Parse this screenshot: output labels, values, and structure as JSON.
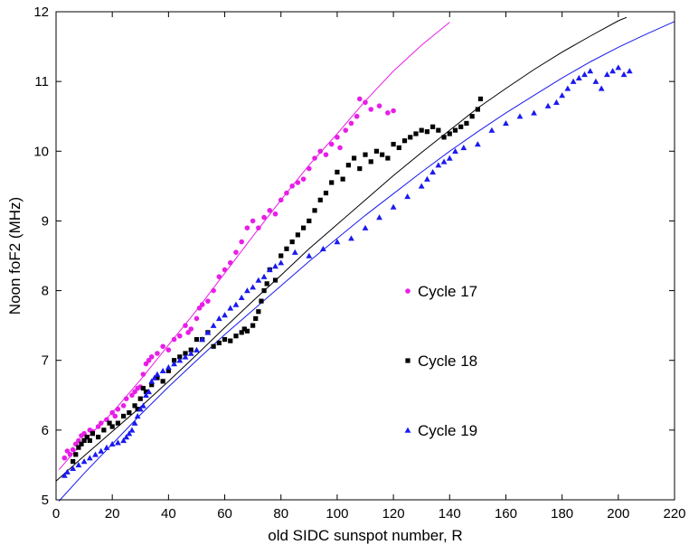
{
  "chart_data": {
    "type": "scatter",
    "xlabel": "old SIDC sunspot number, R",
    "ylabel": "Noon foF2 (MHz)",
    "xlim": [
      0,
      220
    ],
    "ylim": [
      5,
      12
    ],
    "xticks": [
      0,
      20,
      40,
      60,
      80,
      100,
      120,
      140,
      160,
      180,
      200,
      220
    ],
    "yticks": [
      5,
      6,
      7,
      8,
      9,
      10,
      11,
      12
    ],
    "grid": false,
    "legend_position": "inside-right",
    "series": [
      {
        "name": "Cycle 17",
        "marker": "circle",
        "color": "#e81ee6",
        "fit": [
          [
            1,
            5.43
          ],
          [
            10,
            5.85
          ],
          [
            20,
            6.25
          ],
          [
            30,
            6.72
          ],
          [
            40,
            7.22
          ],
          [
            50,
            7.72
          ],
          [
            60,
            8.25
          ],
          [
            70,
            8.78
          ],
          [
            80,
            9.3
          ],
          [
            90,
            9.8
          ],
          [
            100,
            10.25
          ],
          [
            110,
            10.72
          ],
          [
            120,
            11.15
          ],
          [
            130,
            11.52
          ],
          [
            140,
            11.85
          ]
        ],
        "points": [
          [
            3,
            5.6
          ],
          [
            4,
            5.7
          ],
          [
            5,
            5.65
          ],
          [
            6,
            5.72
          ],
          [
            7,
            5.8
          ],
          [
            8,
            5.85
          ],
          [
            9,
            5.92
          ],
          [
            10,
            5.95
          ],
          [
            11,
            5.9
          ],
          [
            12,
            6.0
          ],
          [
            13,
            5.98
          ],
          [
            15,
            6.05
          ],
          [
            16,
            6.1
          ],
          [
            18,
            6.15
          ],
          [
            20,
            6.25
          ],
          [
            21,
            6.2
          ],
          [
            22,
            6.3
          ],
          [
            24,
            6.35
          ],
          [
            25,
            6.45
          ],
          [
            27,
            6.5
          ],
          [
            28,
            6.55
          ],
          [
            29,
            6.6
          ],
          [
            30,
            6.62
          ],
          [
            31,
            6.8
          ],
          [
            32,
            6.95
          ],
          [
            33,
            7.0
          ],
          [
            34,
            7.05
          ],
          [
            36,
            7.1
          ],
          [
            38,
            7.2
          ],
          [
            40,
            7.15
          ],
          [
            42,
            7.3
          ],
          [
            44,
            7.35
          ],
          [
            46,
            7.5
          ],
          [
            47,
            7.4
          ],
          [
            48,
            7.45
          ],
          [
            50,
            7.6
          ],
          [
            51,
            7.75
          ],
          [
            52,
            7.8
          ],
          [
            54,
            7.85
          ],
          [
            56,
            8.0
          ],
          [
            58,
            8.2
          ],
          [
            60,
            8.3
          ],
          [
            62,
            8.4
          ],
          [
            64,
            8.55
          ],
          [
            66,
            8.7
          ],
          [
            68,
            8.9
          ],
          [
            70,
            9.0
          ],
          [
            72,
            8.9
          ],
          [
            74,
            9.05
          ],
          [
            76,
            9.15
          ],
          [
            78,
            9.1
          ],
          [
            80,
            9.3
          ],
          [
            82,
            9.4
          ],
          [
            84,
            9.5
          ],
          [
            86,
            9.55
          ],
          [
            88,
            9.6
          ],
          [
            90,
            9.75
          ],
          [
            92,
            9.9
          ],
          [
            94,
            10.0
          ],
          [
            96,
            9.95
          ],
          [
            98,
            10.1
          ],
          [
            100,
            10.2
          ],
          [
            101,
            10.05
          ],
          [
            103,
            10.3
          ],
          [
            105,
            10.4
          ],
          [
            107,
            10.5
          ],
          [
            108,
            10.75
          ],
          [
            110,
            10.7
          ],
          [
            112,
            10.6
          ],
          [
            115,
            10.65
          ],
          [
            118,
            10.55
          ],
          [
            120,
            10.58
          ]
        ]
      },
      {
        "name": "Cycle 18",
        "marker": "square",
        "color": "#000000",
        "fit": [
          [
            0,
            5.27
          ],
          [
            10,
            5.63
          ],
          [
            20,
            5.98
          ],
          [
            30,
            6.33
          ],
          [
            40,
            6.7
          ],
          [
            50,
            7.08
          ],
          [
            60,
            7.47
          ],
          [
            70,
            7.85
          ],
          [
            80,
            8.22
          ],
          [
            90,
            8.6
          ],
          [
            100,
            8.95
          ],
          [
            110,
            9.3
          ],
          [
            120,
            9.65
          ],
          [
            130,
            9.98
          ],
          [
            140,
            10.3
          ],
          [
            150,
            10.62
          ],
          [
            160,
            10.9
          ],
          [
            170,
            11.17
          ],
          [
            180,
            11.42
          ],
          [
            190,
            11.65
          ],
          [
            200,
            11.87
          ],
          [
            203,
            11.92
          ]
        ],
        "points": [
          [
            6,
            5.55
          ],
          [
            7,
            5.65
          ],
          [
            8,
            5.75
          ],
          [
            9,
            5.8
          ],
          [
            10,
            5.85
          ],
          [
            11,
            5.9
          ],
          [
            12,
            5.85
          ],
          [
            13,
            5.95
          ],
          [
            15,
            5.9
          ],
          [
            17,
            6.0
          ],
          [
            19,
            6.1
          ],
          [
            20,
            6.05
          ],
          [
            22,
            6.1
          ],
          [
            24,
            6.2
          ],
          [
            26,
            6.25
          ],
          [
            28,
            6.35
          ],
          [
            29,
            6.3
          ],
          [
            30,
            6.45
          ],
          [
            31,
            6.6
          ],
          [
            32,
            6.55
          ],
          [
            34,
            6.65
          ],
          [
            36,
            6.75
          ],
          [
            38,
            6.7
          ],
          [
            40,
            6.85
          ],
          [
            42,
            7.0
          ],
          [
            44,
            7.05
          ],
          [
            46,
            7.1
          ],
          [
            48,
            7.15
          ],
          [
            50,
            7.3
          ],
          [
            52,
            7.3
          ],
          [
            54,
            7.4
          ],
          [
            56,
            7.2
          ],
          [
            58,
            7.25
          ],
          [
            60,
            7.3
          ],
          [
            62,
            7.28
          ],
          [
            64,
            7.35
          ],
          [
            66,
            7.4
          ],
          [
            67,
            7.45
          ],
          [
            68,
            7.42
          ],
          [
            70,
            7.5
          ],
          [
            71,
            7.6
          ],
          [
            72,
            7.7
          ],
          [
            73,
            7.85
          ],
          [
            74,
            8.0
          ],
          [
            75,
            8.1
          ],
          [
            76,
            8.3
          ],
          [
            78,
            8.15
          ],
          [
            80,
            8.5
          ],
          [
            82,
            8.6
          ],
          [
            84,
            8.7
          ],
          [
            86,
            8.8
          ],
          [
            88,
            8.9
          ],
          [
            90,
            9.0
          ],
          [
            92,
            9.15
          ],
          [
            94,
            9.3
          ],
          [
            96,
            9.4
          ],
          [
            98,
            9.55
          ],
          [
            100,
            9.7
          ],
          [
            102,
            9.6
          ],
          [
            104,
            9.8
          ],
          [
            106,
            9.9
          ],
          [
            108,
            9.75
          ],
          [
            110,
            9.95
          ],
          [
            112,
            9.85
          ],
          [
            114,
            10.0
          ],
          [
            116,
            9.95
          ],
          [
            118,
            9.9
          ],
          [
            120,
            10.1
          ],
          [
            122,
            10.05
          ],
          [
            124,
            10.15
          ],
          [
            126,
            10.2
          ],
          [
            128,
            10.25
          ],
          [
            130,
            10.3
          ],
          [
            132,
            10.28
          ],
          [
            134,
            10.35
          ],
          [
            136,
            10.3
          ],
          [
            138,
            10.2
          ],
          [
            140,
            10.25
          ],
          [
            142,
            10.3
          ],
          [
            144,
            10.35
          ],
          [
            146,
            10.4
          ],
          [
            148,
            10.5
          ],
          [
            150,
            10.6
          ],
          [
            151,
            10.75
          ]
        ]
      },
      {
        "name": "Cycle 19",
        "marker": "triangle",
        "color": "#1a1aef",
        "fit": [
          [
            1,
            4.98
          ],
          [
            10,
            5.38
          ],
          [
            20,
            5.8
          ],
          [
            30,
            6.22
          ],
          [
            40,
            6.62
          ],
          [
            50,
            7.0
          ],
          [
            60,
            7.37
          ],
          [
            70,
            7.72
          ],
          [
            80,
            8.07
          ],
          [
            90,
            8.42
          ],
          [
            100,
            8.75
          ],
          [
            110,
            9.08
          ],
          [
            120,
            9.39
          ],
          [
            130,
            9.7
          ],
          [
            140,
            10.0
          ],
          [
            150,
            10.28
          ],
          [
            160,
            10.55
          ],
          [
            170,
            10.8
          ],
          [
            180,
            11.05
          ],
          [
            190,
            11.28
          ],
          [
            200,
            11.49
          ],
          [
            210,
            11.68
          ],
          [
            220,
            11.86
          ]
        ],
        "points": [
          [
            3,
            5.35
          ],
          [
            4,
            5.4
          ],
          [
            6,
            5.45
          ],
          [
            8,
            5.5
          ],
          [
            10,
            5.55
          ],
          [
            12,
            5.6
          ],
          [
            14,
            5.65
          ],
          [
            16,
            5.7
          ],
          [
            18,
            5.75
          ],
          [
            20,
            5.8
          ],
          [
            22,
            5.82
          ],
          [
            24,
            5.85
          ],
          [
            25,
            5.9
          ],
          [
            26,
            5.95
          ],
          [
            27,
            6.0
          ],
          [
            28,
            6.1
          ],
          [
            29,
            6.2
          ],
          [
            30,
            6.3
          ],
          [
            31,
            6.35
          ],
          [
            32,
            6.5
          ],
          [
            33,
            6.55
          ],
          [
            34,
            6.7
          ],
          [
            35,
            6.75
          ],
          [
            36,
            6.8
          ],
          [
            38,
            6.85
          ],
          [
            40,
            6.9
          ],
          [
            42,
            6.95
          ],
          [
            44,
            7.0
          ],
          [
            46,
            7.05
          ],
          [
            48,
            7.1
          ],
          [
            50,
            7.15
          ],
          [
            52,
            7.3
          ],
          [
            54,
            7.4
          ],
          [
            56,
            7.5
          ],
          [
            58,
            7.6
          ],
          [
            60,
            7.65
          ],
          [
            62,
            7.75
          ],
          [
            64,
            7.8
          ],
          [
            66,
            7.9
          ],
          [
            68,
            8.0
          ],
          [
            70,
            8.05
          ],
          [
            72,
            8.15
          ],
          [
            74,
            8.2
          ],
          [
            76,
            8.3
          ],
          [
            78,
            8.35
          ],
          [
            80,
            8.4
          ],
          [
            85,
            8.55
          ],
          [
            90,
            8.5
          ],
          [
            95,
            8.6
          ],
          [
            100,
            8.7
          ],
          [
            105,
            8.75
          ],
          [
            110,
            8.9
          ],
          [
            115,
            9.05
          ],
          [
            120,
            9.2
          ],
          [
            125,
            9.35
          ],
          [
            130,
            9.5
          ],
          [
            132,
            9.6
          ],
          [
            134,
            9.7
          ],
          [
            136,
            9.8
          ],
          [
            138,
            9.85
          ],
          [
            140,
            9.9
          ],
          [
            142,
            10.0
          ],
          [
            145,
            10.05
          ],
          [
            150,
            10.1
          ],
          [
            155,
            10.3
          ],
          [
            160,
            10.4
          ],
          [
            165,
            10.5
          ],
          [
            170,
            10.55
          ],
          [
            175,
            10.65
          ],
          [
            178,
            10.7
          ],
          [
            180,
            10.8
          ],
          [
            182,
            10.9
          ],
          [
            184,
            11.0
          ],
          [
            186,
            11.05
          ],
          [
            188,
            11.1
          ],
          [
            190,
            11.15
          ],
          [
            192,
            11.0
          ],
          [
            194,
            10.9
          ],
          [
            196,
            11.1
          ],
          [
            198,
            11.15
          ],
          [
            200,
            11.2
          ],
          [
            202,
            11.1
          ],
          [
            204,
            11.15
          ]
        ]
      }
    ]
  }
}
